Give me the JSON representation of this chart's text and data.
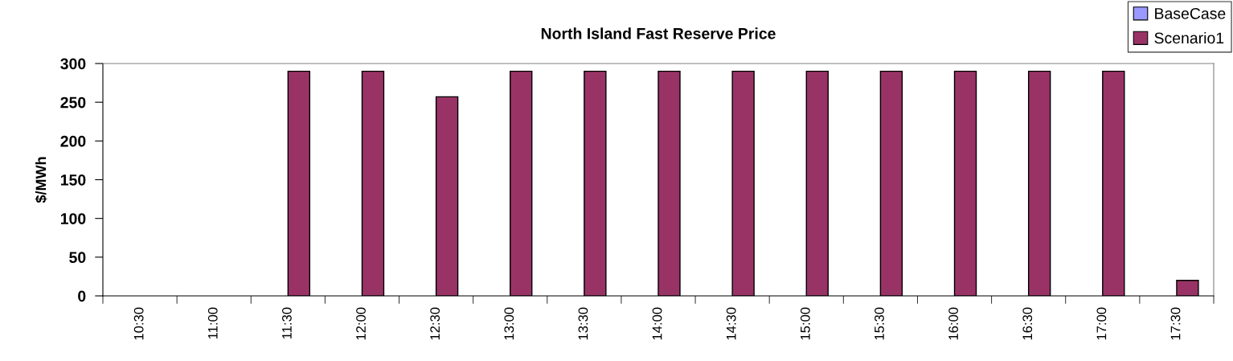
{
  "chart_data": {
    "type": "bar",
    "title": "North Island Fast Reserve Price",
    "ylabel": "$/MWh",
    "categories": [
      "10:30",
      "11:00",
      "11:30",
      "12:00",
      "12:30",
      "13:00",
      "13:30",
      "14:00",
      "14:30",
      "15:00",
      "15:30",
      "16:00",
      "16:30",
      "17:00",
      "17:30"
    ],
    "series": [
      {
        "name": "BaseCase",
        "color": "#9999ff",
        "values": [
          null,
          null,
          null,
          null,
          null,
          null,
          null,
          null,
          null,
          null,
          null,
          null,
          null,
          null,
          null
        ]
      },
      {
        "name": "Scenario1",
        "color": "#993366",
        "values": [
          null,
          null,
          290,
          290,
          257,
          290,
          290,
          290,
          290,
          290,
          290,
          290,
          290,
          290,
          20
        ]
      }
    ],
    "ylim": [
      0,
      300
    ],
    "yticks": [
      0,
      50,
      100,
      150,
      200,
      250,
      300
    ],
    "legend": "top right"
  }
}
